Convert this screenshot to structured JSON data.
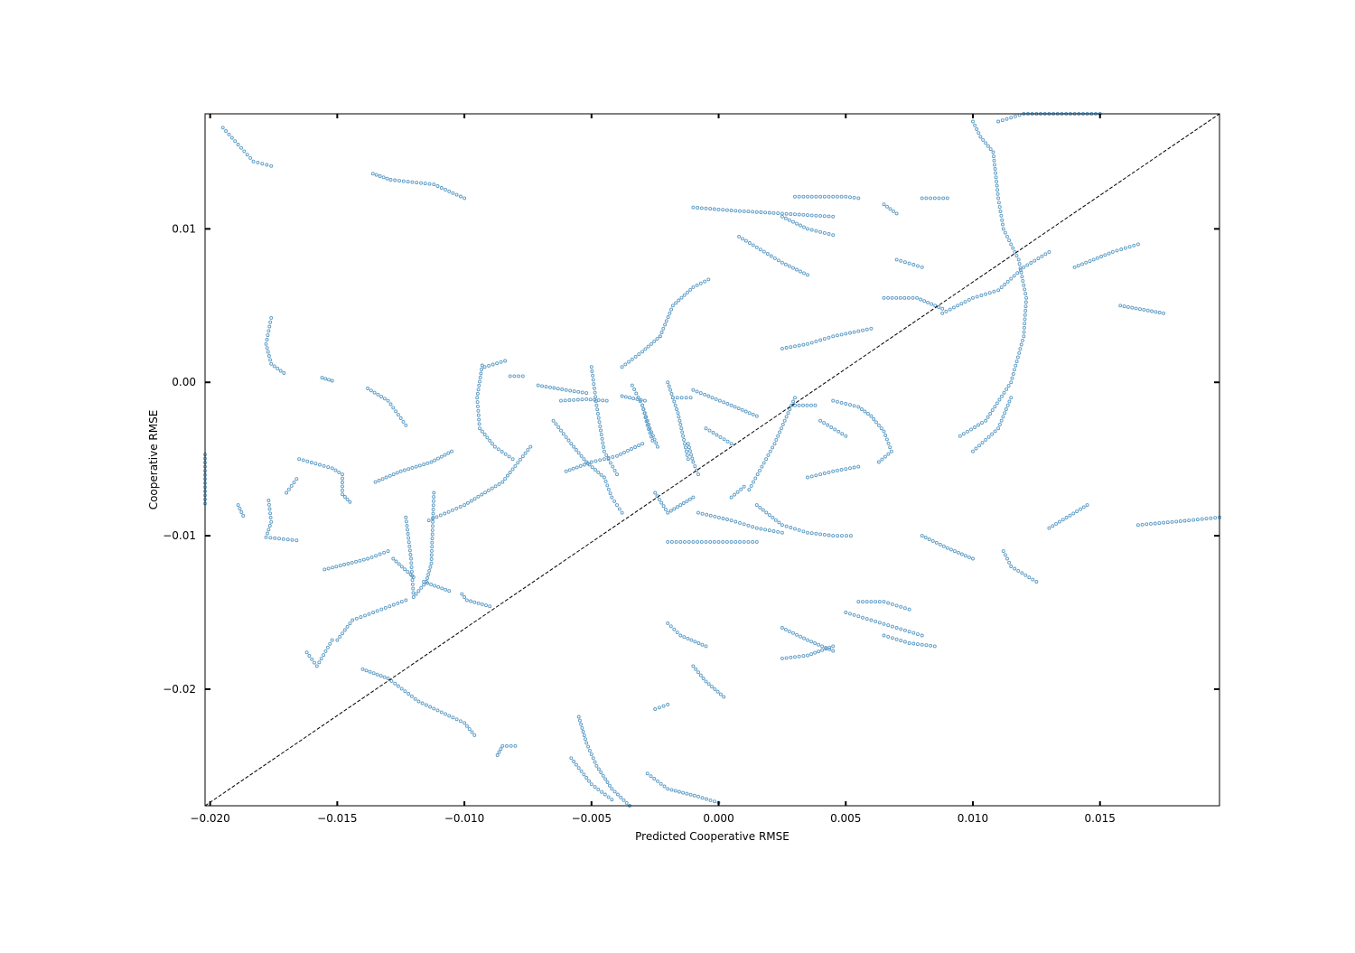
{
  "chart_data": {
    "type": "scatter",
    "title": "",
    "xlabel": "Predicted Cooperative RMSE",
    "ylabel": "Cooperative RMSE",
    "xlim": [
      -0.0202,
      0.0197
    ],
    "ylim": [
      -0.0276,
      0.0175
    ],
    "xticks": [
      {
        "value": -0.02,
        "label": "−0.020"
      },
      {
        "value": -0.015,
        "label": "−0.015"
      },
      {
        "value": -0.01,
        "label": "−0.010"
      },
      {
        "value": -0.005,
        "label": "−0.005"
      },
      {
        "value": 0.0,
        "label": "0.000"
      },
      {
        "value": 0.005,
        "label": "0.005"
      },
      {
        "value": 0.01,
        "label": "0.010"
      },
      {
        "value": 0.015,
        "label": "0.015"
      }
    ],
    "yticks": [
      {
        "value": -0.02,
        "label": "−0.02"
      },
      {
        "value": -0.01,
        "label": "−0.01"
      },
      {
        "value": 0.0,
        "label": "0.00"
      },
      {
        "value": 0.01,
        "label": "0.01"
      }
    ],
    "grid": false,
    "marker_color": "#5b9bc6",
    "reference_line": {
      "from": [
        -0.0202,
        -0.0276
      ],
      "to": [
        0.0197,
        0.0175
      ],
      "style": "dashed",
      "color": "#000000"
    },
    "point_paths": [
      [
        [
          -0.0195,
          0.0166
        ],
        [
          -0.0189,
          0.0155
        ],
        [
          -0.0183,
          0.0144
        ],
        [
          -0.0176,
          0.0141
        ]
      ],
      [
        [
          -0.0136,
          0.0136
        ],
        [
          -0.0129,
          0.0132
        ],
        [
          -0.0112,
          0.0129
        ],
        [
          -0.01,
          0.012
        ]
      ],
      [
        [
          -0.0176,
          0.0042
        ],
        [
          -0.0178,
          0.0025
        ],
        [
          -0.0176,
          0.0012
        ],
        [
          -0.0171,
          0.0006
        ]
      ],
      [
        [
          -0.0202,
          -0.0047
        ],
        [
          -0.0202,
          -0.0079
        ]
      ],
      [
        [
          -0.0189,
          -0.008
        ],
        [
          -0.0187,
          -0.0087
        ]
      ],
      [
        [
          -0.0165,
          -0.005
        ],
        [
          -0.0152,
          -0.0056
        ],
        [
          -0.0148,
          -0.006
        ],
        [
          -0.0148,
          -0.0073
        ],
        [
          -0.0145,
          -0.0078
        ]
      ],
      [
        [
          -0.0177,
          -0.0077
        ],
        [
          -0.0176,
          -0.0091
        ],
        [
          -0.0178,
          -0.0101
        ],
        [
          -0.0166,
          -0.0103
        ]
      ],
      [
        [
          -0.0166,
          -0.0063
        ],
        [
          -0.017,
          -0.0072
        ]
      ],
      [
        [
          -0.0155,
          -0.0122
        ],
        [
          -0.0138,
          -0.0115
        ],
        [
          -0.013,
          -0.011
        ]
      ],
      [
        [
          -0.0162,
          -0.0176
        ],
        [
          -0.0158,
          -0.0185
        ],
        [
          -0.0152,
          -0.0168
        ]
      ],
      [
        [
          -0.015,
          -0.0168
        ],
        [
          -0.0144,
          -0.0155
        ],
        [
          -0.0131,
          -0.0147
        ],
        [
          -0.0123,
          -0.0142
        ]
      ],
      [
        [
          -0.0123,
          -0.0088
        ],
        [
          -0.0121,
          -0.0115
        ],
        [
          -0.012,
          -0.014
        ],
        [
          -0.0115,
          -0.013
        ],
        [
          -0.0113,
          -0.0118
        ],
        [
          -0.0112,
          -0.0072
        ]
      ],
      [
        [
          -0.0128,
          -0.0115
        ],
        [
          -0.012,
          -0.0127
        ]
      ],
      [
        [
          -0.0116,
          -0.013
        ],
        [
          -0.0106,
          -0.0136
        ]
      ],
      [
        [
          -0.014,
          -0.0187
        ],
        [
          -0.013,
          -0.0193
        ],
        [
          -0.0118,
          -0.0208
        ],
        [
          -0.01,
          -0.0222
        ],
        [
          -0.0096,
          -0.023
        ]
      ],
      [
        [
          -0.0101,
          -0.0138
        ],
        [
          -0.0099,
          -0.0142
        ],
        [
          -0.009,
          -0.0146
        ]
      ],
      [
        [
          -0.0087,
          -0.0243
        ],
        [
          -0.0085,
          -0.0237
        ],
        [
          -0.008,
          -0.0237
        ]
      ],
      [
        [
          -0.0135,
          -0.0065
        ],
        [
          -0.0125,
          -0.0058
        ],
        [
          -0.0113,
          -0.0052
        ],
        [
          -0.0105,
          -0.0045
        ]
      ],
      [
        [
          -0.0114,
          -0.009
        ],
        [
          -0.01,
          -0.008
        ],
        [
          -0.0085,
          -0.0065
        ],
        [
          -0.0074,
          -0.0042
        ]
      ],
      [
        [
          -0.0138,
          -0.0004
        ],
        [
          -0.013,
          -0.0012
        ],
        [
          -0.0123,
          -0.0028
        ]
      ],
      [
        [
          -0.0156,
          0.0003
        ],
        [
          -0.0152,
          0.0001
        ]
      ],
      [
        [
          -0.0093,
          0.0011
        ],
        [
          -0.0095,
          -0.001
        ],
        [
          -0.0094,
          -0.003
        ],
        [
          -0.0088,
          -0.0042
        ],
        [
          -0.0081,
          -0.005
        ]
      ],
      [
        [
          -0.0092,
          0.001
        ],
        [
          -0.0084,
          0.0014
        ]
      ],
      [
        [
          -0.0082,
          0.0004
        ],
        [
          -0.0077,
          0.0004
        ]
      ],
      [
        [
          -0.0071,
          -0.0002
        ],
        [
          -0.006,
          -0.0005
        ],
        [
          -0.0052,
          -0.0007
        ]
      ],
      [
        [
          -0.0062,
          -0.0012
        ],
        [
          -0.0052,
          -0.0011
        ],
        [
          -0.0044,
          -0.0012
        ]
      ],
      [
        [
          -0.0038,
          -0.0009
        ],
        [
          -0.0029,
          -0.0012
        ]
      ],
      [
        [
          -0.0018,
          -0.001
        ],
        [
          -0.0011,
          -0.001
        ]
      ],
      [
        [
          -0.0065,
          -0.0025
        ],
        [
          -0.0058,
          -0.004
        ],
        [
          -0.0052,
          -0.0052
        ],
        [
          -0.0045,
          -0.0062
        ],
        [
          -0.0042,
          -0.0075
        ],
        [
          -0.0038,
          -0.0085
        ]
      ],
      [
        [
          -0.005,
          0.001
        ],
        [
          -0.0048,
          -0.0015
        ],
        [
          -0.0045,
          -0.0045
        ],
        [
          -0.004,
          -0.006
        ]
      ],
      [
        [
          -0.003,
          -0.0015
        ],
        [
          -0.0027,
          -0.003
        ],
        [
          -0.0024,
          -0.0042
        ]
      ],
      [
        [
          -0.0034,
          -0.0002
        ],
        [
          -0.003,
          -0.0015
        ],
        [
          -0.0028,
          -0.0028
        ],
        [
          -0.0026,
          -0.0038
        ]
      ],
      [
        [
          -0.002,
          0.0
        ],
        [
          -0.0016,
          -0.002
        ],
        [
          -0.0014,
          -0.0035
        ],
        [
          -0.0012,
          -0.005
        ]
      ],
      [
        [
          -0.0012,
          -0.004
        ],
        [
          -0.001,
          -0.0052
        ],
        [
          -0.0008,
          -0.006
        ]
      ],
      [
        [
          -0.0023,
          0.003
        ],
        [
          -0.0018,
          0.005
        ],
        [
          -0.001,
          0.0062
        ],
        [
          -0.0004,
          0.0067
        ]
      ],
      [
        [
          -0.0038,
          0.001
        ],
        [
          -0.003,
          0.002
        ],
        [
          -0.0023,
          0.003
        ]
      ],
      [
        [
          -0.006,
          -0.0058
        ],
        [
          -0.005,
          -0.0052
        ],
        [
          -0.004,
          -0.0048
        ],
        [
          -0.003,
          -0.004
        ]
      ],
      [
        [
          -0.0025,
          -0.0072
        ],
        [
          -0.002,
          -0.0085
        ],
        [
          -0.0015,
          -0.008
        ],
        [
          -0.001,
          -0.0075
        ]
      ],
      [
        [
          -0.001,
          -0.0005
        ],
        [
          0.0005,
          -0.0015
        ],
        [
          0.0015,
          -0.0022
        ]
      ],
      [
        [
          -0.0005,
          -0.003
        ],
        [
          0.0005,
          -0.004
        ]
      ],
      [
        [
          -0.0008,
          -0.0085
        ],
        [
          0.0005,
          -0.009
        ],
        [
          0.0015,
          -0.0095
        ],
        [
          0.0025,
          -0.0098
        ]
      ],
      [
        [
          0.0015,
          -0.008
        ],
        [
          0.0025,
          -0.0093
        ],
        [
          0.0035,
          -0.0098
        ],
        [
          0.0045,
          -0.01
        ],
        [
          0.0052,
          -0.01
        ]
      ],
      [
        [
          -0.002,
          -0.0104
        ],
        [
          -0.001,
          -0.0104
        ],
        [
          0.0005,
          -0.0104
        ],
        [
          0.0015,
          -0.0104
        ]
      ],
      [
        [
          0.0012,
          -0.007
        ],
        [
          0.0017,
          -0.0055
        ],
        [
          0.0022,
          -0.004
        ],
        [
          0.0026,
          -0.0025
        ],
        [
          0.003,
          -0.001
        ]
      ],
      [
        [
          0.0005,
          -0.0075
        ],
        [
          0.001,
          -0.0068
        ]
      ],
      [
        [
          0.0045,
          -0.0012
        ],
        [
          0.0055,
          -0.0016
        ],
        [
          0.006,
          -0.0022
        ],
        [
          0.0065,
          -0.0032
        ],
        [
          0.0068,
          -0.0045
        ],
        [
          0.0063,
          -0.0052
        ]
      ],
      [
        [
          0.003,
          -0.0015
        ],
        [
          0.0038,
          -0.0015
        ]
      ],
      [
        [
          0.0025,
          0.0022
        ],
        [
          0.0035,
          0.0025
        ],
        [
          0.0045,
          0.003
        ],
        [
          0.006,
          0.0035
        ]
      ],
      [
        [
          0.004,
          -0.0025
        ],
        [
          0.005,
          -0.0035
        ]
      ],
      [
        [
          0.0035,
          -0.0062
        ],
        [
          0.0045,
          -0.0058
        ],
        [
          0.0055,
          -0.0055
        ]
      ],
      [
        [
          -0.001,
          0.0114
        ],
        [
          0.0005,
          0.0112
        ],
        [
          0.0025,
          0.011
        ],
        [
          0.0045,
          0.0108
        ]
      ],
      [
        [
          0.003,
          0.0121
        ],
        [
          0.004,
          0.0121
        ],
        [
          0.005,
          0.0121
        ],
        [
          0.0055,
          0.012
        ]
      ],
      [
        [
          0.0065,
          0.0116
        ],
        [
          0.007,
          0.011
        ]
      ],
      [
        [
          0.008,
          0.012
        ],
        [
          0.009,
          0.012
        ]
      ],
      [
        [
          0.0008,
          0.0095
        ],
        [
          0.0015,
          0.0088
        ],
        [
          0.0025,
          0.0078
        ],
        [
          0.0035,
          0.007
        ]
      ],
      [
        [
          0.0025,
          0.0108
        ],
        [
          0.0035,
          0.01
        ],
        [
          0.0045,
          0.0096
        ]
      ],
      [
        [
          0.007,
          0.008
        ],
        [
          0.008,
          0.0075
        ]
      ],
      [
        [
          0.0065,
          0.0055
        ],
        [
          0.0078,
          0.0055
        ],
        [
          0.0088,
          0.0048
        ]
      ],
      [
        [
          0.01,
          0.017
        ],
        [
          0.0103,
          0.016
        ],
        [
          0.0108,
          0.015
        ],
        [
          0.011,
          0.012
        ],
        [
          0.0112,
          0.01
        ],
        [
          0.0118,
          0.008
        ],
        [
          0.0121,
          0.0055
        ],
        [
          0.012,
          0.003
        ],
        [
          0.0115,
          0.0
        ],
        [
          0.0105,
          -0.0025
        ],
        [
          0.0095,
          -0.0035
        ]
      ],
      [
        [
          0.011,
          0.017
        ],
        [
          0.012,
          0.0175
        ],
        [
          0.0135,
          0.0175
        ],
        [
          0.015,
          0.0175
        ]
      ],
      [
        [
          0.0088,
          0.0045
        ],
        [
          0.01,
          0.0055
        ],
        [
          0.011,
          0.006
        ],
        [
          0.012,
          0.0075
        ],
        [
          0.013,
          0.0085
        ]
      ],
      [
        [
          0.014,
          0.0075
        ],
        [
          0.0155,
          0.0085
        ],
        [
          0.0165,
          0.009
        ]
      ],
      [
        [
          0.0158,
          0.005
        ],
        [
          0.0175,
          0.0045
        ]
      ],
      [
        [
          0.0115,
          -0.001
        ],
        [
          0.011,
          -0.003
        ],
        [
          0.01,
          -0.0045
        ]
      ],
      [
        [
          0.008,
          -0.01
        ],
        [
          0.009,
          -0.0108
        ],
        [
          0.01,
          -0.0115
        ]
      ],
      [
        [
          0.0112,
          -0.011
        ],
        [
          0.0115,
          -0.012
        ],
        [
          0.0125,
          -0.013
        ]
      ],
      [
        [
          0.013,
          -0.0095
        ],
        [
          0.0145,
          -0.008
        ]
      ],
      [
        [
          0.0165,
          -0.0093
        ],
        [
          0.0185,
          -0.009
        ],
        [
          0.0197,
          -0.0088
        ]
      ],
      [
        [
          0.0025,
          -0.016
        ],
        [
          0.0035,
          -0.0168
        ],
        [
          0.0045,
          -0.0175
        ]
      ],
      [
        [
          0.0025,
          -0.018
        ],
        [
          0.0035,
          -0.0178
        ],
        [
          0.0045,
          -0.0172
        ]
      ],
      [
        [
          0.005,
          -0.015
        ],
        [
          0.006,
          -0.0155
        ],
        [
          0.007,
          -0.016
        ],
        [
          0.008,
          -0.0165
        ]
      ],
      [
        [
          0.0055,
          -0.0143
        ],
        [
          0.0065,
          -0.0143
        ],
        [
          0.0075,
          -0.0148
        ]
      ],
      [
        [
          0.0065,
          -0.0165
        ],
        [
          0.0075,
          -0.017
        ],
        [
          0.0085,
          -0.0172
        ]
      ],
      [
        [
          -0.002,
          -0.0157
        ],
        [
          -0.0015,
          -0.0165
        ],
        [
          -0.0005,
          -0.0172
        ]
      ],
      [
        [
          -0.001,
          -0.0185
        ],
        [
          -0.0005,
          -0.0195
        ],
        [
          0.0002,
          -0.0205
        ]
      ],
      [
        [
          -0.0055,
          -0.0218
        ],
        [
          -0.0052,
          -0.0235
        ],
        [
          -0.0048,
          -0.025
        ],
        [
          -0.0042,
          -0.0265
        ],
        [
          -0.0035,
          -0.0276
        ]
      ],
      [
        [
          -0.0058,
          -0.0245
        ],
        [
          -0.005,
          -0.0262
        ],
        [
          -0.0042,
          -0.0272
        ]
      ],
      [
        [
          -0.0028,
          -0.0255
        ],
        [
          -0.002,
          -0.0265
        ],
        [
          -0.0008,
          -0.027
        ],
        [
          0.0,
          -0.0274
        ]
      ],
      [
        [
          -0.0025,
          -0.0213
        ],
        [
          -0.002,
          -0.021
        ]
      ]
    ]
  }
}
